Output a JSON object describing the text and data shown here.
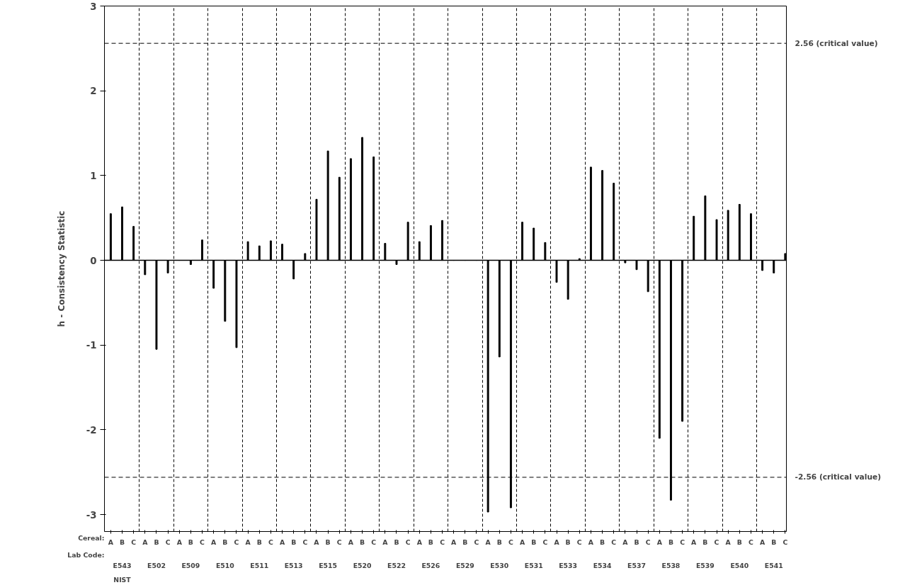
{
  "chart_data": {
    "type": "bar",
    "ylabel": "h - Consistency Statistic",
    "categories": [
      "A",
      "B",
      "C",
      "A",
      "B",
      "C",
      "A",
      "B",
      "C",
      "A",
      "B",
      "C",
      "A",
      "B",
      "C",
      "A",
      "B",
      "C",
      "A",
      "B",
      "C",
      "A",
      "B",
      "C",
      "A",
      "B",
      "C",
      "A",
      "B",
      "C",
      "A",
      "B",
      "C",
      "A",
      "B",
      "C",
      "A",
      "B",
      "C",
      "A",
      "B",
      "C",
      "A",
      "B",
      "C",
      "A",
      "B",
      "C",
      "A",
      "B",
      "C",
      "A",
      "B",
      "C",
      "A",
      "B",
      "C",
      "A",
      "B",
      "C"
    ],
    "values": [
      0.55,
      0.63,
      0.4,
      -0.17,
      -1.05,
      -0.15,
      0.0,
      -0.05,
      0.24,
      -0.33,
      -0.72,
      -1.03,
      0.22,
      0.17,
      0.23,
      0.19,
      -0.22,
      0.08,
      0.72,
      1.29,
      0.98,
      1.2,
      1.45,
      1.22,
      0.2,
      -0.05,
      0.45,
      0.22,
      0.41,
      0.47,
      0.0,
      0.0,
      0.0,
      -2.97,
      -1.14,
      -2.92,
      0.45,
      0.38,
      0.21,
      -0.26,
      -0.46,
      0.02,
      1.1,
      1.06,
      0.91,
      -0.03,
      -0.11,
      -0.37,
      -2.1,
      -2.83,
      -1.9,
      0.52,
      0.76,
      0.48,
      0.59,
      0.66,
      0.55,
      -0.12,
      -0.15,
      0.08
    ],
    "color": "#000000",
    "ylim": [
      -3.2,
      3
    ],
    "yticks": [
      -3,
      -2,
      -1,
      0,
      1,
      2,
      3
    ],
    "grid": "x",
    "ref_lines": [
      {
        "axis": "y",
        "value": 2.56,
        "label": "2.56 (critical value)",
        "line_style": "dashed"
      },
      {
        "axis": "y",
        "value": -2.56,
        "label": "-2.56 (critical value)",
        "line_style": "dashed"
      }
    ],
    "annotations": [
      "Cereal:",
      "Lab Code:",
      "E543",
      "E502",
      "E509",
      "E510",
      "E511",
      "E513",
      "E515",
      "E520",
      "E522",
      "E526",
      "E529",
      "E530",
      "E531",
      "E533",
      "E534",
      "E537",
      "E538",
      "E539",
      "E540",
      "E541",
      "NIST"
    ]
  }
}
